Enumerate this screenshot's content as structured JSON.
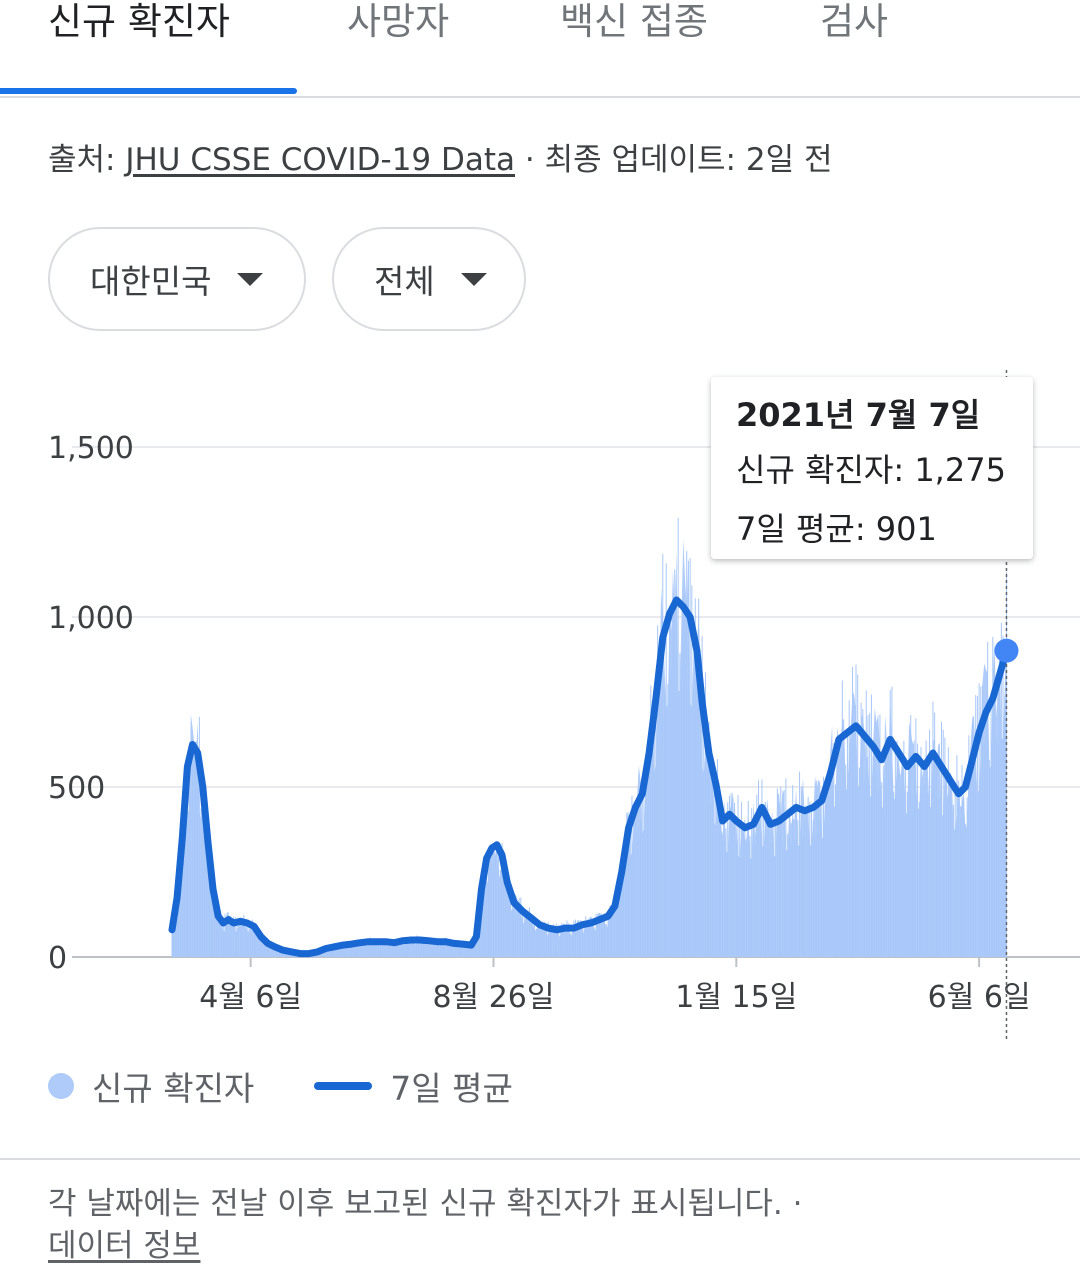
{
  "tabs": [
    {
      "label": "신규 확진자",
      "active": true
    },
    {
      "label": "사망자",
      "active": false
    },
    {
      "label": "백신 접종",
      "active": false
    },
    {
      "label": "검사",
      "active": false
    }
  ],
  "source": {
    "prefix": "출처: ",
    "link": "JHU CSSE COVID-19 Data",
    "suffix": " · 최종 업데이트: 2일 전"
  },
  "filters": {
    "region": "대한민국",
    "scope": "전체"
  },
  "tooltip": {
    "date": "2021년 7월 7일",
    "cases": "신규 확진자: 1,275",
    "avg": "7일 평균: 901"
  },
  "legend": {
    "cases": "신규 확진자",
    "avg": "7일 평균"
  },
  "footnote": {
    "text": "각 날짜에는 전날 이후 보고된 신규 확진자가 표시됩니다.  ·",
    "link": "데이터 정보"
  },
  "colors": {
    "accent": "#1a73e8",
    "bars": "#aecbfa",
    "line": "#1967d2",
    "marker": "#4285f4"
  },
  "chart_data": {
    "type": "area",
    "y_ticks": [
      "0",
      "500",
      "1,000",
      "1,500"
    ],
    "ylim": [
      0,
      1500
    ],
    "x_ticks": [
      {
        "label": "4월 6일",
        "day": 46
      },
      {
        "label": "8월 26일",
        "day": 188
      },
      {
        "label": "1월 15일",
        "day": 330
      },
      {
        "label": "6월 6일",
        "day": 472
      }
    ],
    "legend_position": "bottom-left",
    "gridlines": true,
    "selected": {
      "day": 503,
      "cases": 1275,
      "avg": 901
    },
    "series": [
      {
        "name": "7일 평균",
        "points": [
          [
            0,
            80
          ],
          [
            3,
            175
          ],
          [
            6,
            350
          ],
          [
            9,
            560
          ],
          [
            12,
            625
          ],
          [
            15,
            600
          ],
          [
            18,
            500
          ],
          [
            21,
            340
          ],
          [
            24,
            200
          ],
          [
            27,
            120
          ],
          [
            30,
            100
          ],
          [
            33,
            110
          ],
          [
            36,
            100
          ],
          [
            40,
            105
          ],
          [
            44,
            100
          ],
          [
            48,
            90
          ],
          [
            52,
            60
          ],
          [
            56,
            40
          ],
          [
            60,
            30
          ],
          [
            65,
            20
          ],
          [
            70,
            15
          ],
          [
            75,
            10
          ],
          [
            80,
            10
          ],
          [
            85,
            15
          ],
          [
            90,
            25
          ],
          [
            95,
            30
          ],
          [
            100,
            35
          ],
          [
            105,
            38
          ],
          [
            110,
            42
          ],
          [
            115,
            45
          ],
          [
            120,
            45
          ],
          [
            125,
            45
          ],
          [
            130,
            42
          ],
          [
            135,
            48
          ],
          [
            140,
            50
          ],
          [
            145,
            50
          ],
          [
            150,
            48
          ],
          [
            155,
            45
          ],
          [
            160,
            45
          ],
          [
            165,
            40
          ],
          [
            170,
            38
          ],
          [
            175,
            35
          ],
          [
            178,
            60
          ],
          [
            181,
            200
          ],
          [
            184,
            290
          ],
          [
            187,
            320
          ],
          [
            190,
            330
          ],
          [
            193,
            300
          ],
          [
            196,
            220
          ],
          [
            200,
            160
          ],
          [
            205,
            135
          ],
          [
            210,
            115
          ],
          [
            215,
            95
          ],
          [
            220,
            85
          ],
          [
            225,
            80
          ],
          [
            230,
            85
          ],
          [
            235,
            85
          ],
          [
            240,
            95
          ],
          [
            245,
            100
          ],
          [
            250,
            110
          ],
          [
            255,
            120
          ],
          [
            259,
            150
          ],
          [
            263,
            250
          ],
          [
            267,
            380
          ],
          [
            271,
            440
          ],
          [
            275,
            480
          ],
          [
            279,
            600
          ],
          [
            283,
            760
          ],
          [
            287,
            940
          ],
          [
            291,
            1010
          ],
          [
            295,
            1050
          ],
          [
            299,
            1030
          ],
          [
            303,
            1000
          ],
          [
            307,
            900
          ],
          [
            310,
            750
          ],
          [
            314,
            600
          ],
          [
            318,
            510
          ],
          [
            322,
            400
          ],
          [
            326,
            420
          ],
          [
            330,
            400
          ],
          [
            335,
            380
          ],
          [
            340,
            390
          ],
          [
            345,
            440
          ],
          [
            350,
            390
          ],
          [
            355,
            400
          ],
          [
            360,
            420
          ],
          [
            365,
            440
          ],
          [
            370,
            430
          ],
          [
            375,
            440
          ],
          [
            380,
            460
          ],
          [
            385,
            540
          ],
          [
            390,
            640
          ],
          [
            395,
            660
          ],
          [
            400,
            680
          ],
          [
            405,
            650
          ],
          [
            410,
            620
          ],
          [
            415,
            580
          ],
          [
            420,
            640
          ],
          [
            425,
            600
          ],
          [
            430,
            560
          ],
          [
            435,
            590
          ],
          [
            440,
            560
          ],
          [
            445,
            600
          ],
          [
            450,
            560
          ],
          [
            455,
            520
          ],
          [
            460,
            480
          ],
          [
            464,
            500
          ],
          [
            468,
            580
          ],
          [
            472,
            660
          ],
          [
            476,
            720
          ],
          [
            480,
            760
          ],
          [
            484,
            830
          ],
          [
            488,
            901
          ]
        ]
      }
    ]
  }
}
